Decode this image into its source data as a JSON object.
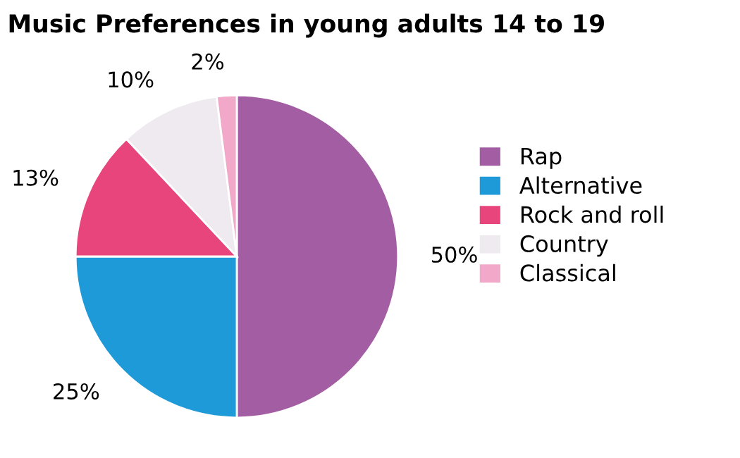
{
  "chart_data": {
    "type": "pie",
    "title": "Music Preferences in young adults 14 to 19",
    "categories": [
      "Rap",
      "Alternative",
      "Rock and roll",
      "Country",
      "Classical"
    ],
    "values": [
      50,
      25,
      13,
      10,
      2
    ],
    "colors": [
      "#a35ea3",
      "#1f9ad8",
      "#e8457c",
      "#eeeaf0",
      "#f2a8c8"
    ],
    "value_labels": [
      "50%",
      "25%",
      "13%",
      "10%",
      "2%"
    ],
    "legend": "right"
  }
}
